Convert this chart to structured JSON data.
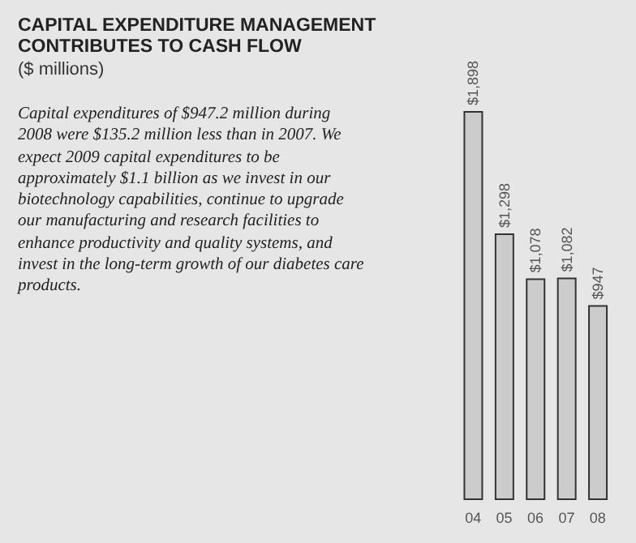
{
  "chart_data": {
    "type": "bar",
    "title": "CAPITAL EXPENDITURE MANAGEMENT CONTRIBUTES TO CASH FLOW",
    "subtitle": "($ millions)",
    "annotations": [
      "Capital expenditures of $947.2 million during 2008 were $135.2 million less than in 2007. We expect 2009 capital expenditures to be approximately $1.1 billion as we invest in our biotechnology capabilities, continue to upgrade our manufacturing and research facilities to enhance productivity and quality systems, and invest in the long-term growth of our diabetes care products."
    ],
    "categories": [
      "04",
      "05",
      "06",
      "07",
      "08"
    ],
    "values": [
      1898,
      1298,
      1078,
      1082,
      947
    ],
    "value_labels": [
      "$1,898",
      "$1,298",
      "$1,078",
      "$1,082",
      "$947"
    ],
    "color": "#cccccc"
  }
}
